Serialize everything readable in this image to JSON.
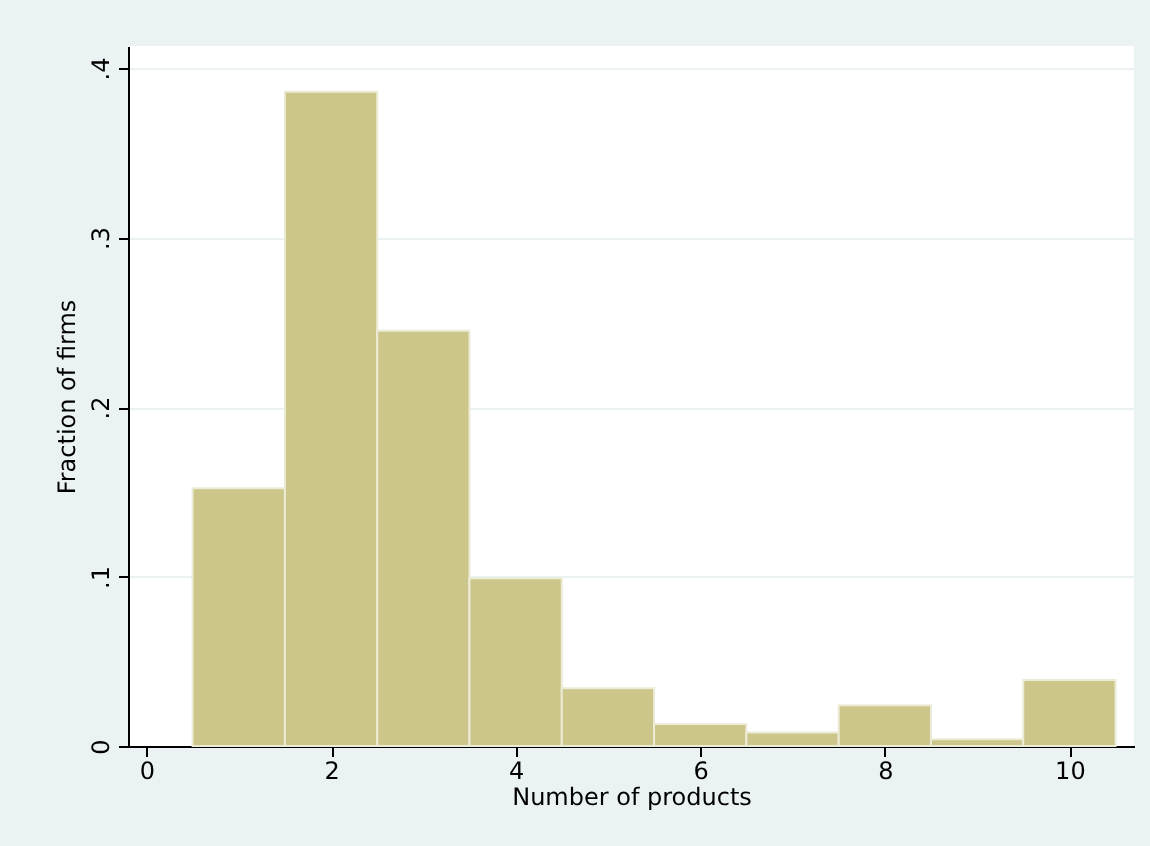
{
  "chart_data": {
    "type": "histogram",
    "xlabel": "Number of products",
    "ylabel": "Fraction of firms",
    "bins": [
      0.5,
      1.5,
      2.5,
      3.5,
      4.5,
      5.5,
      6.5,
      7.5,
      8.5,
      9.5,
      10.5
    ],
    "values": [
      0.152,
      0.386,
      0.245,
      0.099,
      0.034,
      0.013,
      0.008,
      0.024,
      0.004,
      0.039
    ],
    "color": "#cdc68a",
    "xlim": [
      -0.2,
      10.7
    ],
    "ylim": [
      0,
      0.413
    ],
    "xticks": [
      0,
      2,
      4,
      6,
      8,
      10
    ],
    "yticks": [
      0,
      {
        "value": 0.1,
        "label": ".1"
      },
      {
        "value": 0.2,
        "label": ".2"
      },
      {
        "value": 0.3,
        "label": ".3"
      },
      {
        "value": 0.4,
        "label": ".4"
      }
    ],
    "grid": "y"
  }
}
